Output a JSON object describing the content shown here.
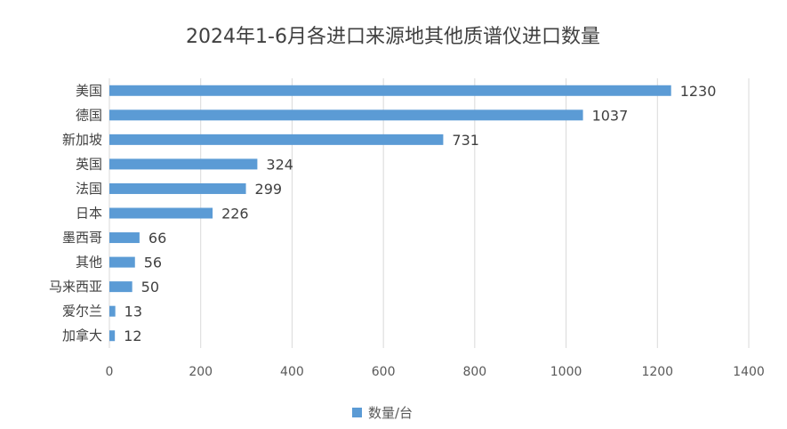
{
  "chart_data": {
    "type": "bar",
    "orientation": "horizontal",
    "title": "2024年1-6月各进口来源地其他质谱仪进口数量",
    "categories": [
      "美国",
      "德国",
      "新加坡",
      "英国",
      "法国",
      "日本",
      "墨西哥",
      "其他",
      "马来西亚",
      "爱尔兰",
      "加拿大"
    ],
    "series": [
      {
        "name": "数量/台",
        "values": [
          1230,
          1037,
          731,
          324,
          299,
          226,
          66,
          56,
          50,
          13,
          12
        ]
      }
    ],
    "xlim": [
      0,
      1400
    ],
    "xticks": [
      "0",
      "200",
      "400",
      "600",
      "800",
      "1000",
      "1200",
      "1400"
    ],
    "grid": true,
    "legend_position": "bottom",
    "color": "#5b9bd5"
  }
}
